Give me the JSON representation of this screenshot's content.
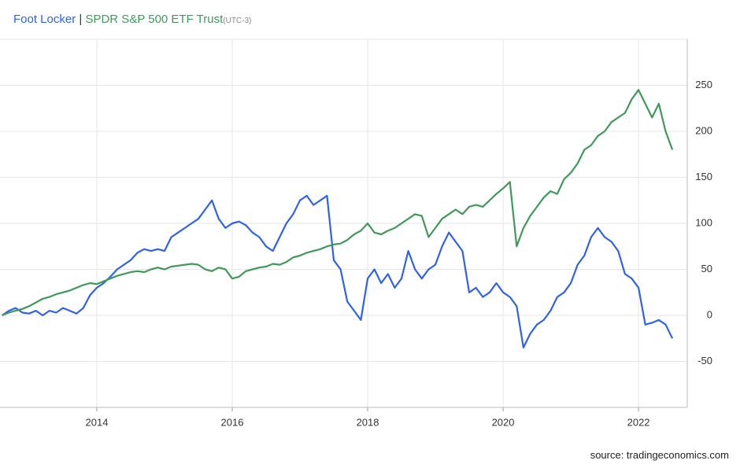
{
  "chart_data": {
    "type": "line",
    "legend_separator": "|",
    "timezone": "(UTC-3)",
    "source": "source: tradingeconomics.com",
    "x": [
      2012.6,
      2012.7,
      2012.8,
      2012.9,
      2013.0,
      2013.1,
      2013.2,
      2013.3,
      2013.4,
      2013.5,
      2013.6,
      2013.7,
      2013.8,
      2013.9,
      2014.0,
      2014.1,
      2014.2,
      2014.3,
      2014.4,
      2014.5,
      2014.6,
      2014.7,
      2014.8,
      2014.9,
      2015.0,
      2015.1,
      2015.2,
      2015.3,
      2015.4,
      2015.5,
      2015.6,
      2015.7,
      2015.8,
      2015.9,
      2016.0,
      2016.1,
      2016.2,
      2016.3,
      2016.4,
      2016.5,
      2016.6,
      2016.7,
      2016.8,
      2016.9,
      2017.0,
      2017.1,
      2017.2,
      2017.3,
      2017.4,
      2017.5,
      2017.6,
      2017.7,
      2017.8,
      2017.9,
      2018.0,
      2018.1,
      2018.2,
      2018.3,
      2018.4,
      2018.5,
      2018.6,
      2018.7,
      2018.8,
      2018.9,
      2019.0,
      2019.1,
      2019.2,
      2019.3,
      2019.4,
      2019.5,
      2019.6,
      2019.7,
      2019.8,
      2019.9,
      2020.0,
      2020.1,
      2020.2,
      2020.3,
      2020.4,
      2020.5,
      2020.6,
      2020.7,
      2020.8,
      2020.9,
      2021.0,
      2021.1,
      2021.2,
      2021.3,
      2021.4,
      2021.5,
      2021.6,
      2021.7,
      2021.8,
      2021.9,
      2022.0,
      2022.1,
      2022.2,
      2022.3,
      2022.4,
      2022.5
    ],
    "series": [
      {
        "name": "Foot Locker",
        "color": "#2f62e8",
        "values": [
          0,
          5,
          8,
          3,
          2,
          5,
          0,
          5,
          3,
          8,
          5,
          2,
          8,
          22,
          30,
          35,
          42,
          50,
          55,
          60,
          68,
          72,
          70,
          72,
          70,
          85,
          90,
          95,
          100,
          105,
          115,
          125,
          105,
          95,
          100,
          102,
          98,
          90,
          85,
          75,
          70,
          85,
          100,
          110,
          125,
          130,
          120,
          125,
          130,
          60,
          50,
          15,
          5,
          -5,
          40,
          50,
          35,
          45,
          30,
          40,
          70,
          50,
          40,
          50,
          55,
          75,
          90,
          80,
          70,
          25,
          30,
          20,
          25,
          35,
          25,
          20,
          10,
          -35,
          -20,
          -10,
          -5,
          5,
          20,
          25,
          35,
          55,
          65,
          85,
          95,
          85,
          80,
          70,
          45,
          40,
          30,
          -10,
          -8,
          -5,
          -10,
          -25
        ]
      },
      {
        "name": "SPDR S&P 500 ETF Trust",
        "color": "#3f9a5a",
        "values": [
          0,
          3,
          5,
          7,
          10,
          14,
          18,
          20,
          23,
          25,
          27,
          30,
          33,
          35,
          34,
          37,
          40,
          43,
          45,
          47,
          48,
          47,
          50,
          52,
          50,
          53,
          54,
          55,
          56,
          55,
          50,
          48,
          52,
          50,
          40,
          42,
          48,
          50,
          52,
          53,
          56,
          55,
          58,
          63,
          65,
          68,
          70,
          72,
          75,
          77,
          78,
          82,
          88,
          92,
          100,
          90,
          88,
          92,
          95,
          100,
          105,
          110,
          108,
          85,
          95,
          105,
          110,
          115,
          110,
          118,
          120,
          118,
          125,
          132,
          138,
          145,
          75,
          95,
          108,
          118,
          128,
          135,
          132,
          148,
          155,
          165,
          180,
          185,
          195,
          200,
          210,
          215,
          220,
          235,
          245,
          230,
          215,
          230,
          200,
          180
        ]
      }
    ],
    "xlim": [
      2012.57,
      2022.72
    ],
    "xticks": [
      2014,
      2016,
      2018,
      2020,
      2022
    ],
    "ylim": [
      -100,
      300
    ],
    "yticks": [
      -50,
      0,
      50,
      100,
      150,
      200,
      250
    ],
    "grid": true
  }
}
